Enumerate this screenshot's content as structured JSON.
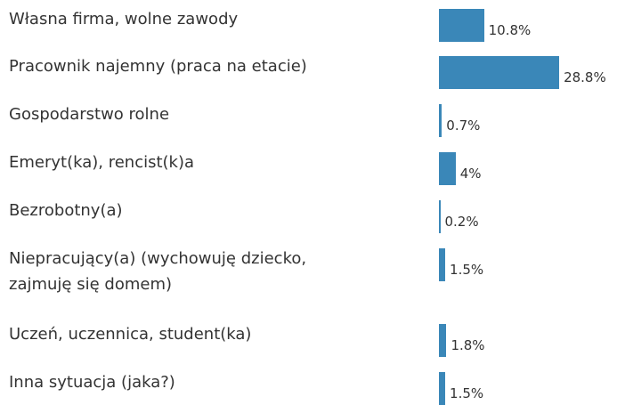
{
  "chart_data": {
    "type": "bar",
    "orientation": "horizontal",
    "categories": [
      "Własna firma, wolne zawody",
      "Pracownik najemny (praca na etacie)",
      "Gospodarstwo rolne",
      "Emeryt(ka), rencist(k)a",
      "Bezrobotny(a)",
      "Niepracujący(a) (wychowuję dziecko,\nzajmuję się domem)",
      "Uczeń, uczennica, student(ka)",
      "Inna sytuacja (jaka?)"
    ],
    "values": [
      10.8,
      28.8,
      0.7,
      4,
      0.2,
      1.5,
      1.8,
      1.5
    ],
    "value_labels": [
      "10.8%",
      "28.8%",
      "0.7%",
      "4%",
      "0.2%",
      "1.5%",
      "1.8%",
      "1.5%"
    ],
    "color": "#3a87b8"
  }
}
